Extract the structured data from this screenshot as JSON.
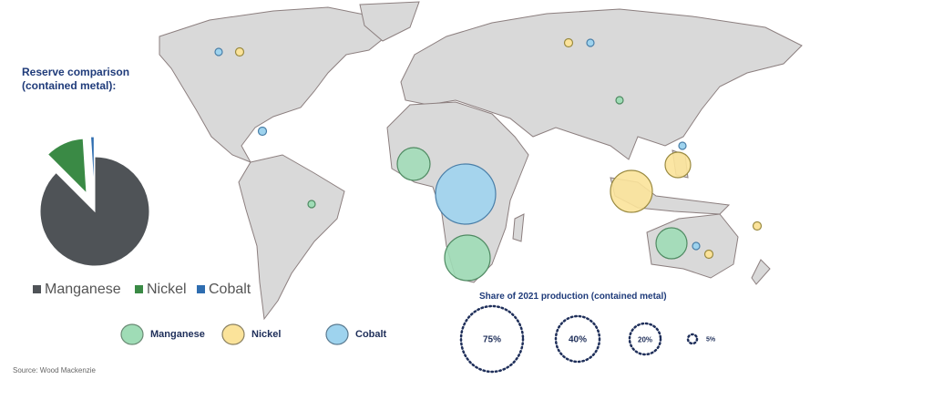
{
  "pie": {
    "title": "Reserve comparison (contained metal):",
    "title_line1": "Reserve comparison",
    "title_line2": "(contained metal):",
    "chart_data": {
      "type": "pie",
      "categories": [
        "Manganese",
        "Nickel",
        "Cobalt"
      ],
      "values": [
        87.5,
        11.5,
        1.0
      ],
      "colors": [
        "#4f5357",
        "#3a8a45",
        "#2e6db0"
      ],
      "legend_placement": "bottom"
    }
  },
  "map_legend": {
    "items": [
      {
        "label": "Manganese",
        "color": "#9fdcb6"
      },
      {
        "label": "Nickel",
        "color": "#fbe39a"
      },
      {
        "label": "Cobalt",
        "color": "#9ed3ee"
      }
    ]
  },
  "size_legend": {
    "title": "Share of 2021 production (contained metal)",
    "items": [
      "75%",
      "40%",
      "20%",
      "5%"
    ]
  },
  "source": "Source: Wood Mackenzie"
}
